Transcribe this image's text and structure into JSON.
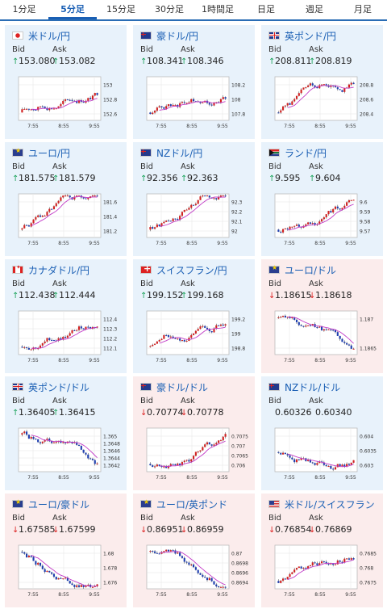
{
  "tabs": [
    {
      "label": "1分足",
      "active": false
    },
    {
      "label": "5分足",
      "active": true
    },
    {
      "label": "15分足",
      "active": false
    },
    {
      "label": "30分足",
      "active": false
    },
    {
      "label": "1時間足",
      "active": false
    },
    {
      "label": "日足",
      "active": false
    },
    {
      "label": "週足",
      "active": false
    },
    {
      "label": "月足",
      "active": false
    }
  ],
  "bid_label": "Bid",
  "ask_label": "Ask",
  "colors": {
    "up_card": "#e8f2fb",
    "down_card": "#fbecec",
    "bull": "#d22222",
    "bear": "#1f3fb0",
    "ma": "#c23bc7",
    "wick": "#333333",
    "link": "#1a5fb4"
  },
  "pairs": [
    {
      "name": "米ドル/円",
      "flag": "jp",
      "dir": "up",
      "bid": "153.080",
      "ask": "153.082",
      "bid_arrow": "up",
      "ask_arrow": "up",
      "y_ticks": [
        "153",
        "152.8",
        "152.6"
      ],
      "x_ticks": [
        "7:55",
        "8:55",
        "9:55"
      ],
      "chart_data": {
        "type": "candlestick",
        "trend": "up",
        "ylim": [
          152.55,
          153.1
        ]
      }
    },
    {
      "name": "豪ドル/円",
      "flag": "au",
      "dir": "up",
      "bid": "108.341",
      "ask": "108.346",
      "bid_arrow": "up",
      "ask_arrow": "up",
      "y_ticks": [
        "108.2",
        "108",
        "107.8"
      ],
      "x_ticks": [
        "7:55",
        "8:55",
        "9:55"
      ],
      "chart_data": {
        "type": "candlestick",
        "trend": "up",
        "ylim": [
          107.75,
          108.4
        ]
      }
    },
    {
      "name": "英ポンド/円",
      "flag": "gb",
      "dir": "up",
      "bid": "208.811",
      "ask": "208.819",
      "bid_arrow": "up",
      "ask_arrow": "up",
      "y_ticks": [
        "208.8",
        "208.6",
        "208.4"
      ],
      "x_ticks": [
        "7:55",
        "8:55",
        "9:55"
      ],
      "chart_data": {
        "type": "candlestick",
        "trend": "up",
        "ylim": [
          208.3,
          208.9
        ]
      }
    },
    {
      "name": "ユーロ/円",
      "flag": "eu",
      "dir": "up",
      "bid": "181.575",
      "ask": "181.579",
      "bid_arrow": "up",
      "ask_arrow": "up",
      "y_ticks": [
        "181.6",
        "181.4",
        "181.2"
      ],
      "x_ticks": [
        "7:55",
        "8:55",
        "9:55"
      ],
      "chart_data": {
        "type": "candlestick",
        "trend": "up",
        "ylim": [
          181.15,
          181.65
        ]
      }
    },
    {
      "name": "NZドル/円",
      "flag": "nz",
      "dir": "up",
      "bid": "92.356",
      "ask": "92.363",
      "bid_arrow": "up",
      "ask_arrow": "up",
      "y_ticks": [
        "92.3",
        "92.2",
        "92.1",
        "92"
      ],
      "x_ticks": [
        "7:55",
        "8:55",
        "9:55"
      ],
      "chart_data": {
        "type": "candlestick",
        "trend": "up",
        "ylim": [
          91.98,
          92.38
        ]
      }
    },
    {
      "name": "ランド/円",
      "flag": "za",
      "dir": "up",
      "bid": "9.595",
      "ask": "9.604",
      "bid_arrow": "up",
      "ask_arrow": "up",
      "y_ticks": [
        "9.6",
        "9.59",
        "9.58",
        "9.57"
      ],
      "x_ticks": [
        "7:55",
        "8:55",
        "9:55"
      ],
      "chart_data": {
        "type": "candlestick",
        "trend": "up",
        "ylim": [
          9.565,
          9.605
        ]
      }
    },
    {
      "name": "カナダドル/円",
      "flag": "ca",
      "dir": "up",
      "bid": "112.438",
      "ask": "112.444",
      "bid_arrow": "up",
      "ask_arrow": "up",
      "y_ticks": [
        "112.4",
        "112.3",
        "112.2",
        "112.1"
      ],
      "x_ticks": [
        "7:55",
        "8:55",
        "9:55"
      ],
      "chart_data": {
        "type": "candlestick",
        "trend": "up",
        "ylim": [
          112.05,
          112.48
        ]
      }
    },
    {
      "name": "スイスフラン/円",
      "flag": "ch",
      "dir": "up",
      "bid": "199.152",
      "ask": "199.168",
      "bid_arrow": "up",
      "ask_arrow": "up",
      "y_ticks": [
        "199.2",
        "199",
        "198.8"
      ],
      "x_ticks": [
        "7:55",
        "8:55",
        "9:55"
      ],
      "chart_data": {
        "type": "candlestick",
        "trend": "up",
        "ylim": [
          198.75,
          199.22
        ]
      }
    },
    {
      "name": "ユーロ/ドル",
      "flag": "eu",
      "dir": "down",
      "bid": "1.18615",
      "ask": "1.18618",
      "bid_arrow": "down",
      "ask_arrow": "down",
      "y_ticks": [
        "1.187",
        "1.1865"
      ],
      "x_ticks": [
        "7:55",
        "8:55",
        "9:55"
      ],
      "chart_data": {
        "type": "candlestick",
        "trend": "down",
        "ylim": [
          1.1861,
          1.1875
        ]
      }
    },
    {
      "name": "英ポンド/ドル",
      "flag": "gb",
      "dir": "up",
      "bid": "1.36405",
      "ask": "1.36415",
      "bid_arrow": "up",
      "ask_arrow": "up",
      "y_ticks": [
        "1.365",
        "1.3648",
        "1.3646",
        "1.3644",
        "1.3642"
      ],
      "x_ticks": [
        "7:55",
        "8:55",
        "9:55"
      ],
      "chart_data": {
        "type": "candlestick",
        "trend": "down",
        "ylim": [
          1.3639,
          1.3651
        ]
      }
    },
    {
      "name": "豪ドル/ドル",
      "flag": "au",
      "dir": "down",
      "bid": "0.70774",
      "ask": "0.70778",
      "bid_arrow": "down",
      "ask_arrow": "down",
      "y_ticks": [
        "0.7075",
        "0.707",
        "0.7065",
        "0.706"
      ],
      "x_ticks": [
        "7:55",
        "8:55",
        "9:55"
      ],
      "chart_data": {
        "type": "candlestick",
        "trend": "up",
        "ylim": [
          0.7058,
          0.7078
        ]
      }
    },
    {
      "name": "NZドル/ドル",
      "flag": "nz",
      "dir": "up",
      "bid": "0.60326",
      "ask": "0.60340",
      "bid_arrow": "none",
      "ask_arrow": "none",
      "y_ticks": [
        "0.604",
        "0.6035",
        "0.603"
      ],
      "x_ticks": [
        "7:55",
        "8:55",
        "9:55"
      ],
      "chart_data": {
        "type": "candlestick",
        "trend": "flat",
        "ylim": [
          0.6027,
          0.6043
        ]
      }
    },
    {
      "name": "ユーロ/豪ドル",
      "flag": "eu",
      "dir": "down",
      "bid": "1.67585",
      "ask": "1.67599",
      "bid_arrow": "down",
      "ask_arrow": "down",
      "y_ticks": [
        "1.68",
        "1.678",
        "1.676"
      ],
      "x_ticks": [
        "7:55",
        "8:55",
        "9:55"
      ],
      "chart_data": {
        "type": "candlestick",
        "trend": "down",
        "ylim": [
          1.6755,
          1.681
        ]
      }
    },
    {
      "name": "ユーロ/英ポンド",
      "flag": "eu",
      "dir": "down",
      "bid": "0.86951",
      "ask": "0.86959",
      "bid_arrow": "down",
      "ask_arrow": "down",
      "y_ticks": [
        "0.87",
        "0.8698",
        "0.8696",
        "0.8694"
      ],
      "x_ticks": [
        "7:55",
        "8:55",
        "9:55"
      ],
      "chart_data": {
        "type": "candlestick",
        "trend": "down",
        "ylim": [
          0.8693,
          0.8702
        ]
      }
    },
    {
      "name": "米ドル/スイスフラン",
      "flag": "us",
      "dir": "down",
      "bid": "0.76854",
      "ask": "0.76869",
      "bid_arrow": "down",
      "ask_arrow": "down",
      "y_ticks": [
        "0.7685",
        "0.768",
        "0.7675"
      ],
      "x_ticks": [
        "7:55",
        "8:55",
        "9:55"
      ],
      "chart_data": {
        "type": "candlestick",
        "trend": "up",
        "ylim": [
          0.7673,
          0.7688
        ]
      }
    }
  ]
}
